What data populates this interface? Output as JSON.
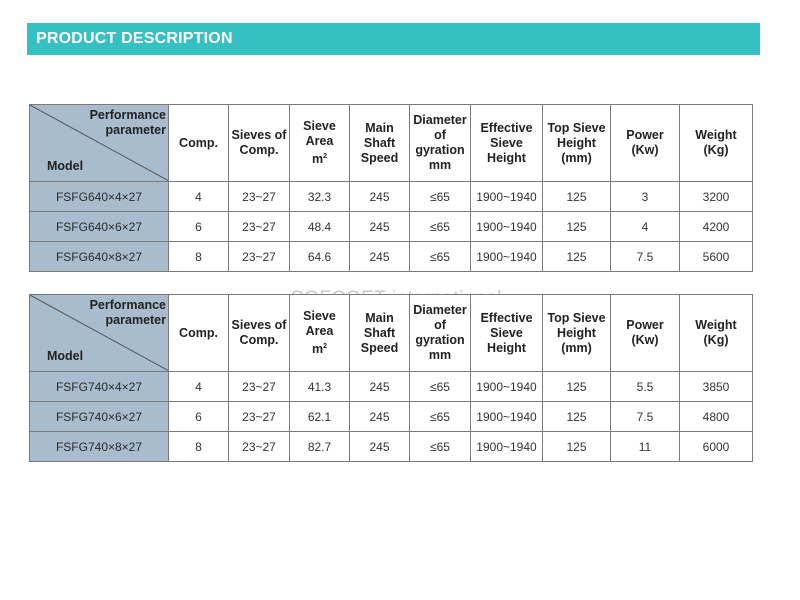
{
  "banner": {
    "title": "PRODUCT DESCRIPTION"
  },
  "watermark": "COFCOET international",
  "header": {
    "parameter": [
      "Performance",
      "parameter"
    ],
    "model": "Model",
    "comp": "Comp.",
    "sieves": [
      "Sieves of",
      "Comp."
    ],
    "sieve_area": [
      "Sieve",
      "Area",
      "m",
      "2"
    ],
    "main_shaft": [
      "Main",
      "Shaft",
      "Speed"
    ],
    "diameter": [
      "Diameter",
      "of",
      "gyration",
      "mm"
    ],
    "effective": [
      "Effective",
      "Sieve",
      "Height"
    ],
    "top_sieve": [
      "Top Sieve",
      "Height",
      "(mm)"
    ],
    "power": [
      "Power",
      "(Kw)"
    ],
    "weight": [
      "Weight",
      "(Kg)"
    ]
  },
  "tables": [
    {
      "rows": [
        {
          "model": "FSFG640×4×27",
          "comp": "4",
          "sieves": "23~27",
          "area": "32.3",
          "speed": "245",
          "gyration": "≤65",
          "effective": "1900~1940",
          "top": "125",
          "power": "3",
          "weight": "3200"
        },
        {
          "model": "FSFG640×6×27",
          "comp": "6",
          "sieves": "23~27",
          "area": "48.4",
          "speed": "245",
          "gyration": "≤65",
          "effective": "1900~1940",
          "top": "125",
          "power": "4",
          "weight": "4200"
        },
        {
          "model": "FSFG640×8×27",
          "comp": "8",
          "sieves": "23~27",
          "area": "64.6",
          "speed": "245",
          "gyration": "≤65",
          "effective": "1900~1940",
          "top": "125",
          "power": "7.5",
          "weight": "5600"
        }
      ]
    },
    {
      "rows": [
        {
          "model": "FSFG740×4×27",
          "comp": "4",
          "sieves": "23~27",
          "area": "41.3",
          "speed": "245",
          "gyration": "≤65",
          "effective": "1900~1940",
          "top": "125",
          "power": "5.5",
          "weight": "3850"
        },
        {
          "model": "FSFG740×6×27",
          "comp": "6",
          "sieves": "23~27",
          "area": "62.1",
          "speed": "245",
          "gyration": "≤65",
          "effective": "1900~1940",
          "top": "125",
          "power": "7.5",
          "weight": "4800"
        },
        {
          "model": "FSFG740×8×27",
          "comp": "8",
          "sieves": "23~27",
          "area": "82.7",
          "speed": "245",
          "gyration": "≤65",
          "effective": "1900~1940",
          "top": "125",
          "power": "11",
          "weight": "6000"
        }
      ]
    }
  ]
}
